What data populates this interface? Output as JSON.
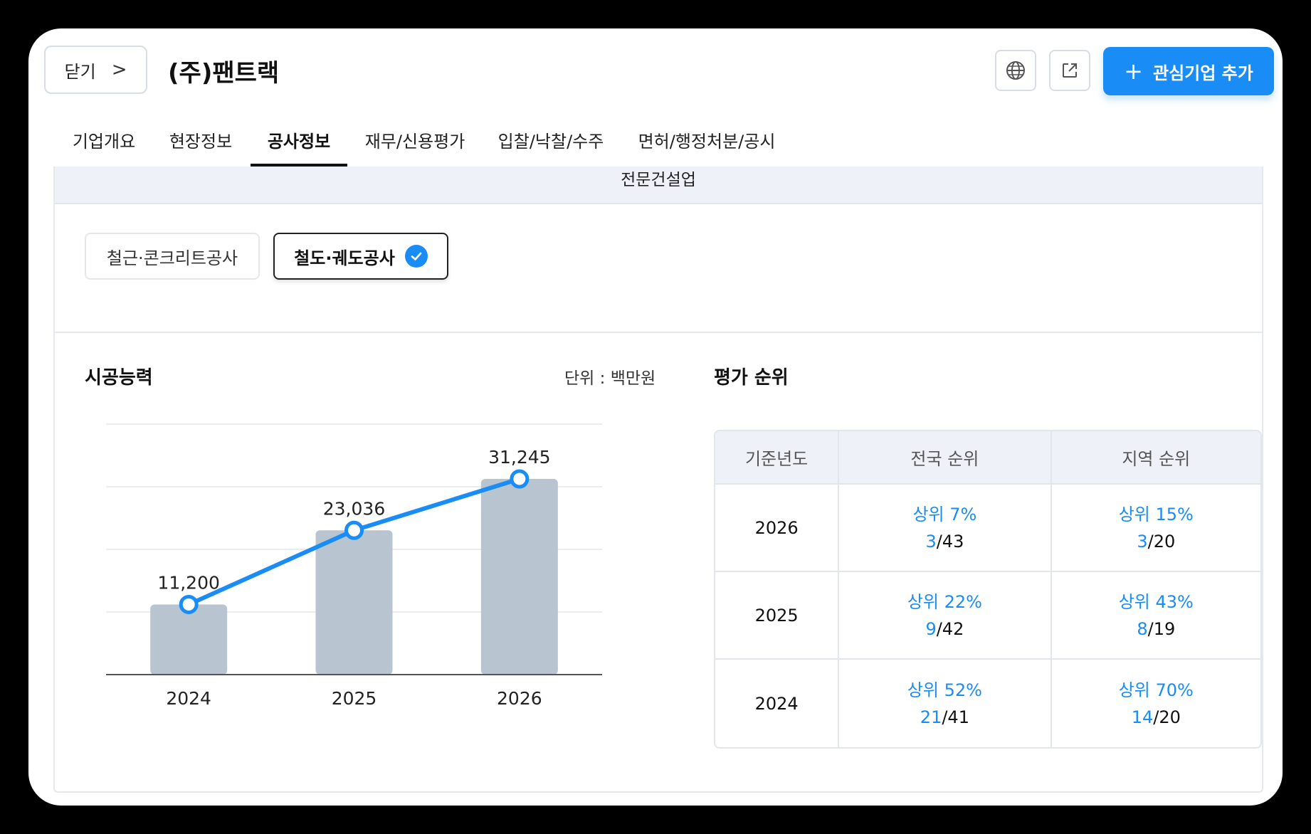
{
  "header": {
    "close_label": "닫기",
    "close_chevron": ">",
    "company_name": "(주)팬트랙",
    "add_button_label": "관심기업 추가",
    "add_button_plus": "+"
  },
  "tabs": [
    {
      "label": "기업개요",
      "active": false
    },
    {
      "label": "현장정보",
      "active": false
    },
    {
      "label": "공사정보",
      "active": true
    },
    {
      "label": "재무/신용평가",
      "active": false
    },
    {
      "label": "입찰/낙찰/수주",
      "active": false
    },
    {
      "label": "면허/행정처분/공시",
      "active": false
    }
  ],
  "section_header": "전문건설업",
  "filters": [
    {
      "label": "철근·콘크리트공사",
      "selected": false
    },
    {
      "label": "철도·궤도공사",
      "selected": true
    }
  ],
  "capability": {
    "title": "시공능력",
    "unit_label": "단위 : 백만원"
  },
  "chart_data": {
    "type": "bar",
    "categories": [
      "2024",
      "2025",
      "2026"
    ],
    "values": [
      11200,
      23036,
      31245
    ],
    "value_labels": [
      "11,200",
      "23,036",
      "31,245"
    ],
    "overlay": "line",
    "ylim": [
      0,
      40000
    ],
    "grid": true,
    "title": "",
    "xlabel": "",
    "ylabel": "",
    "colors": {
      "bar": "#b8c4d0",
      "line": "#1a8cf5"
    }
  },
  "ranking": {
    "title": "평가 순위",
    "headers": [
      "기준년도",
      "전국 순위",
      "지역 순위"
    ],
    "rows": [
      {
        "year": "2026",
        "nat_pct": "상위 7%",
        "nat_rank": "3",
        "nat_total": "/43",
        "reg_pct": "상위 15%",
        "reg_rank": "3",
        "reg_total": "/20"
      },
      {
        "year": "2025",
        "nat_pct": "상위 22%",
        "nat_rank": "9",
        "nat_total": "/42",
        "reg_pct": "상위 43%",
        "reg_rank": "8",
        "reg_total": "/19"
      },
      {
        "year": "2024",
        "nat_pct": "상위 52%",
        "nat_rank": "21",
        "nat_total": "/41",
        "reg_pct": "상위 70%",
        "reg_rank": "14",
        "reg_total": "/20"
      }
    ]
  },
  "icons": {
    "globe": "globe-icon",
    "share": "external-link-icon",
    "check": "check-circle-icon"
  },
  "colors": {
    "accent": "#1a8cf5",
    "header_bg": "#eef2f8"
  }
}
